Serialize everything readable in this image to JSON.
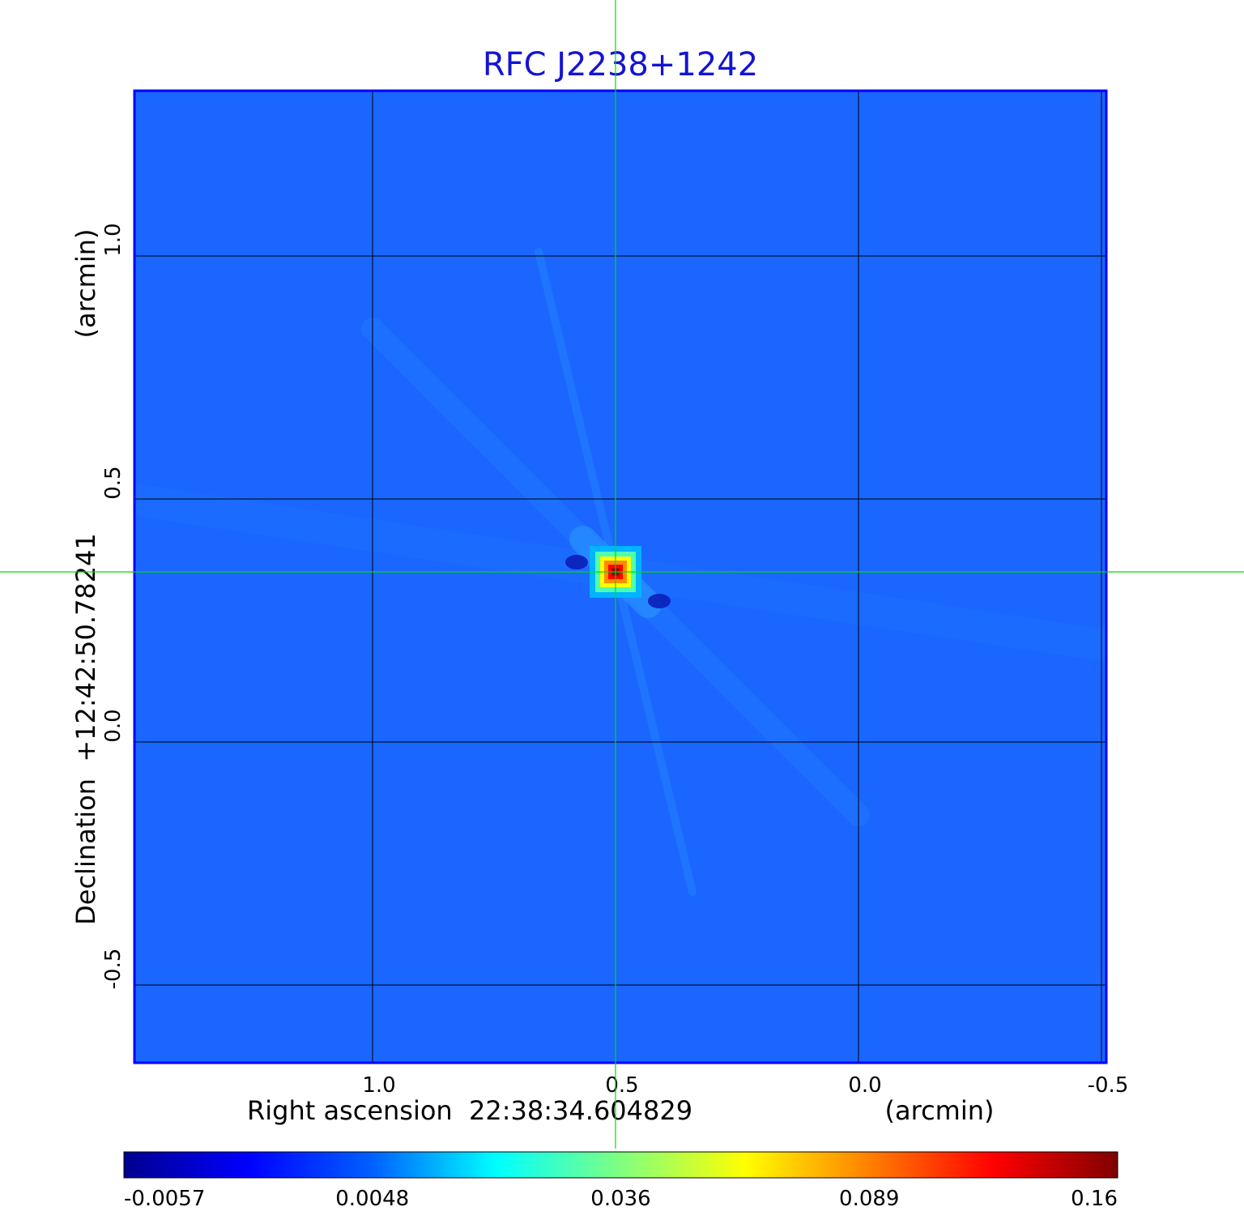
{
  "chart_data": {
    "type": "heatmap",
    "title": "RFC J2238+1242",
    "xlabel": "Right ascension  22:38:34.604829",
    "xunit": "(arcmin)",
    "ylabel": "Declination  +12:42:50.78241",
    "yunit": "(arcmin)",
    "x_ticks": [
      1.0,
      0.5,
      0.0,
      -0.5
    ],
    "x_tick_labels": [
      "1.0",
      "0.5",
      "0.0",
      "-0.5"
    ],
    "y_ticks": [
      1.0,
      0.5,
      0.0,
      -0.5
    ],
    "y_tick_labels": [
      "1.0",
      "0.5",
      "0.0",
      "-0.5"
    ],
    "xlim": [
      1.49,
      -0.51
    ],
    "ylim": [
      -0.66,
      1.34
    ],
    "x_reversed": true,
    "grid": true,
    "crosshair": {
      "x": 0.5,
      "y": 0.35
    },
    "colormap": "jet",
    "colorbar": {
      "placement": "bottom",
      "tick_labels": [
        "-0.0057",
        "0.0048",
        "0.036",
        "0.089",
        "0.16"
      ],
      "range": [
        -0.0057,
        0.16
      ]
    },
    "background_level": 0.0,
    "source": {
      "x": 0.5,
      "y": 0.35,
      "peak": 0.16
    },
    "features": [
      {
        "type": "negative-sidelobe",
        "x": 0.58,
        "y": 0.37,
        "value": -0.0057
      },
      {
        "type": "negative-sidelobe",
        "x": 0.41,
        "y": 0.29,
        "value": -0.0057
      }
    ]
  },
  "colors": {
    "title": "#1414d2",
    "frame": "#0000ff",
    "crosshair": "#00dd00",
    "grid": "#000000",
    "background_map": "#1a66ff"
  }
}
